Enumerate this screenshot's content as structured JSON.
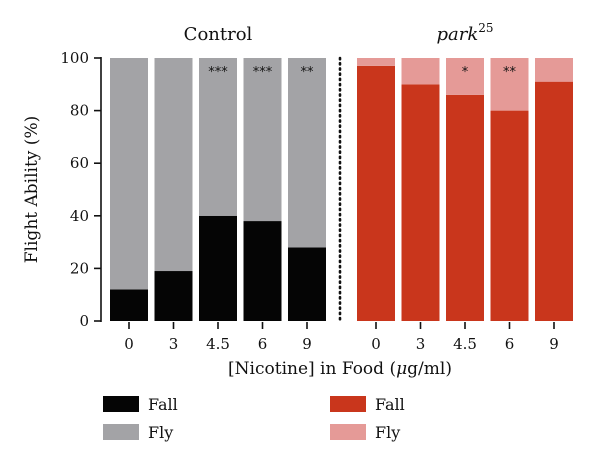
{
  "chart_data": {
    "type": "bar",
    "stacked": true,
    "ylabel": "Flight Ability (%)",
    "xlabel_prefix": "[Nicotine] in Food (",
    "xlabel_unit_symbol": "μ",
    "xlabel_suffix": "g/ml)",
    "ylim": [
      0,
      100
    ],
    "yticks": [
      0,
      20,
      40,
      60,
      80,
      100
    ],
    "categories": [
      "0",
      "3",
      "4.5",
      "6",
      "9"
    ],
    "groups": [
      {
        "title": "Control",
        "title_italic": false,
        "title_superscript": "",
        "color_fall": "#050505",
        "color_fly": "#a3a3a6",
        "fall": [
          12,
          19,
          40,
          38,
          28
        ],
        "fly": [
          88,
          81,
          60,
          62,
          72
        ],
        "significance": [
          "",
          "",
          "***",
          "***",
          "**"
        ]
      },
      {
        "title": "park",
        "title_italic": true,
        "title_superscript": "25",
        "color_fall": "#c9361c",
        "color_fly": "#e59a97",
        "fall": [
          97,
          90,
          86,
          80,
          91
        ],
        "fly": [
          3,
          10,
          14,
          20,
          9
        ],
        "significance": [
          "",
          "",
          "*",
          "**",
          ""
        ]
      }
    ],
    "legend": [
      {
        "label": "Fall",
        "color": "#050505"
      },
      {
        "label": "Fly",
        "color": "#a3a3a6"
      },
      {
        "label": "Fall",
        "color": "#c9361c"
      },
      {
        "label": "Fly",
        "color": "#e59a97"
      }
    ],
    "legend_placement": "bottom",
    "divider": "dotted-vertical",
    "grid": false
  }
}
